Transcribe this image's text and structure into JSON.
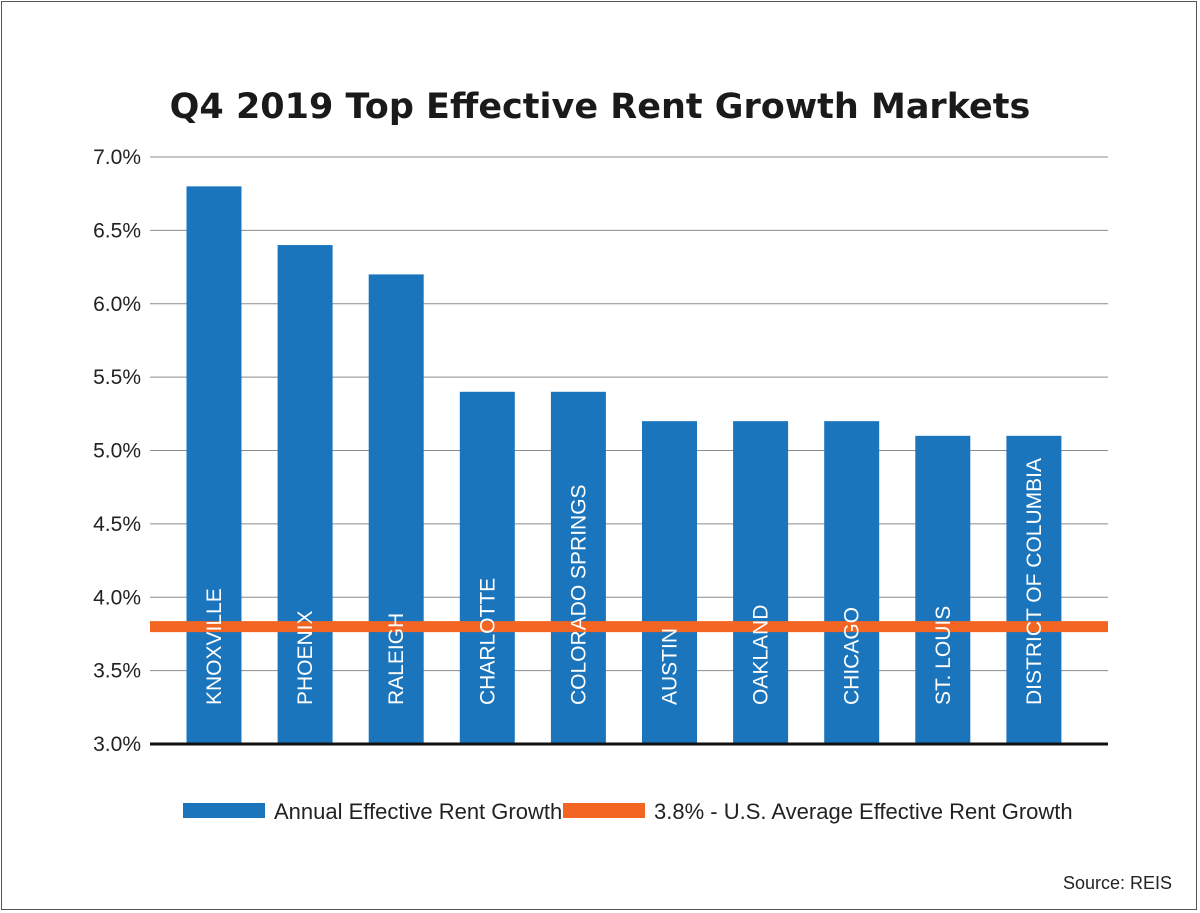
{
  "chart_data": {
    "type": "bar",
    "title": "Q4 2019 Top Effective Rent Growth Markets",
    "categories": [
      "KNOXVILLE",
      "PHOENIX",
      "RALEIGH",
      "CHARLOTTE",
      "COLORADO SPRINGS",
      "AUSTIN",
      "OAKLAND",
      "CHICAGO",
      "ST. LOUIS",
      "DISTRICT OF COLUMBIA"
    ],
    "series": [
      {
        "name": "Annual Effective Rent Growth",
        "values": [
          6.8,
          6.4,
          6.2,
          5.4,
          5.4,
          5.2,
          5.2,
          5.2,
          5.1,
          5.1
        ],
        "color": "#1b75bc"
      }
    ],
    "reference_line": {
      "value": 3.8,
      "label": "3.8% - U.S. Average Effective Rent Growth",
      "color": "#f26522"
    },
    "ylim": [
      3.0,
      7.0
    ],
    "yticks": [
      "3.0%",
      "3.5%",
      "4.0%",
      "4.5%",
      "5.0%",
      "5.5%",
      "6.0%",
      "6.5%",
      "7.0%"
    ],
    "grid": true,
    "legend_position": "bottom",
    "source": "Source: REIS"
  }
}
